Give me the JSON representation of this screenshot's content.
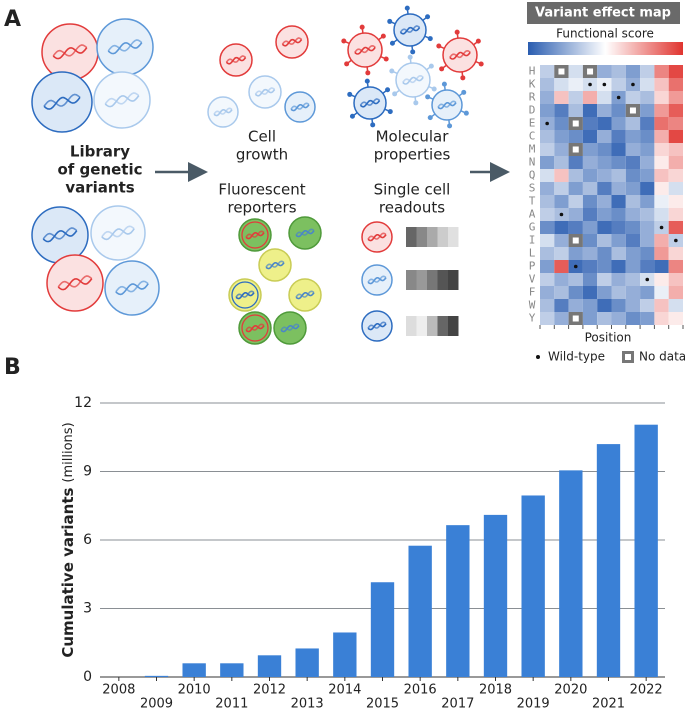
{
  "panel_a": {
    "label": "A",
    "library": [
      "Library",
      "of genetic",
      "variants"
    ],
    "cell_growth": [
      "Cell",
      "growth"
    ],
    "molecular": [
      "Molecular",
      "properties"
    ],
    "fluorescent": [
      "Fluorescent",
      "reporters"
    ],
    "single_cell": [
      "Single cell",
      "readouts"
    ],
    "heatmap": {
      "title": "Variant effect map",
      "scale_label": "Functional score",
      "clim": [
        -1,
        1
      ],
      "rows": [
        "H",
        "K",
        "R",
        "D",
        "E",
        "C",
        "M",
        "N",
        "Q",
        "S",
        "T",
        "A",
        "G",
        "I",
        "L",
        "P",
        "V",
        "F",
        "W",
        "Y"
      ],
      "values": [
        [
          -0.3,
          null,
          -0.2,
          null,
          -0.5,
          -0.4,
          -0.6,
          -0.3,
          0.6,
          0.9
        ],
        [
          -0.4,
          -0.2,
          -0.1,
          -0.2,
          -0.1,
          -0.3,
          -0.5,
          -0.2,
          0.3,
          0.7
        ],
        [
          -0.5,
          0.3,
          -0.3,
          0.4,
          -0.2,
          -0.6,
          -0.3,
          -0.4,
          0.2,
          0.5
        ],
        [
          -0.6,
          -0.8,
          -0.4,
          -0.9,
          -0.5,
          -0.7,
          null,
          -0.6,
          0.5,
          0.8
        ],
        [
          -0.5,
          -0.7,
          null,
          -0.8,
          -0.9,
          -0.6,
          -0.4,
          -0.8,
          0.7,
          0.6
        ],
        [
          -0.4,
          -0.6,
          -0.7,
          -0.9,
          -0.5,
          -0.8,
          -0.6,
          -0.7,
          0.4,
          0.9
        ],
        [
          -0.3,
          -0.5,
          null,
          -0.6,
          -0.7,
          -0.9,
          -0.5,
          -0.6,
          0.2,
          0.3
        ],
        [
          -0.6,
          -0.4,
          -0.8,
          -0.5,
          -0.6,
          -0.7,
          -0.8,
          -0.5,
          0.1,
          0.4
        ],
        [
          -0.2,
          0.3,
          -0.4,
          -0.6,
          -0.5,
          -0.4,
          -0.7,
          -0.6,
          0.3,
          0.2
        ],
        [
          -0.5,
          -0.3,
          -0.6,
          -0.4,
          -0.8,
          -0.5,
          -0.6,
          -0.9,
          0.1,
          -0.2
        ],
        [
          -0.4,
          -0.6,
          -0.3,
          -0.7,
          -0.5,
          -0.9,
          -0.4,
          -0.6,
          -0.1,
          0.1
        ],
        [
          -0.3,
          -0.4,
          -0.5,
          -0.8,
          -0.6,
          -0.7,
          -0.5,
          -0.4,
          -0.2,
          0.2
        ],
        [
          -0.7,
          -0.9,
          -0.8,
          -0.6,
          -0.9,
          -0.8,
          -0.7,
          -0.5,
          -0.3,
          0.8
        ],
        [
          -0.2,
          -0.5,
          null,
          -0.7,
          -0.4,
          -0.6,
          -0.8,
          -0.5,
          0.4,
          -0.3
        ],
        [
          -0.4,
          -0.3,
          -0.6,
          -0.5,
          -0.7,
          -0.4,
          -0.6,
          -0.7,
          0.5,
          0.2
        ],
        [
          -0.6,
          0.8,
          -0.9,
          -0.8,
          -0.7,
          -0.9,
          -0.6,
          -0.8,
          -0.9,
          0.6
        ],
        [
          -0.3,
          -0.5,
          -0.4,
          -0.7,
          -0.3,
          -0.5,
          -0.4,
          -0.2,
          0.1,
          0.3
        ],
        [
          -0.5,
          -0.4,
          -0.7,
          -0.9,
          -0.6,
          -0.4,
          -0.5,
          -0.6,
          -0.1,
          0.4
        ],
        [
          -0.4,
          -0.8,
          -0.5,
          -0.6,
          -0.9,
          -0.7,
          -0.5,
          -0.3,
          0.3,
          -0.2
        ],
        [
          -0.3,
          -0.5,
          null,
          -0.6,
          -0.4,
          -0.5,
          -0.7,
          -0.6,
          0.2,
          0.1
        ]
      ],
      "wild_type_rows": [
        4,
        11,
        15,
        1,
        1,
        2,
        1,
        16,
        12,
        13
      ],
      "xlabel": "Position",
      "legend": {
        "wild_type": "Wild-type",
        "no_data": "No data"
      }
    }
  },
  "panel_b_label": "B",
  "chart_data": {
    "type": "bar",
    "ylabel": "Cumulative variants",
    "ylabel_unit": "(millions)",
    "categories": [
      "2008",
      "2009",
      "2010",
      "2011",
      "2012",
      "2013",
      "2014",
      "2015",
      "2016",
      "2017",
      "2018",
      "2019",
      "2020",
      "2021",
      "2022"
    ],
    "values": [
      0,
      0.05,
      0.6,
      0.6,
      0.95,
      1.25,
      1.95,
      4.15,
      5.75,
      6.65,
      7.1,
      7.95,
      9.05,
      10.2,
      11.05
    ],
    "color": "#3a80d6",
    "ylim": [
      0,
      12
    ],
    "yticks": [
      0,
      3,
      6,
      9,
      12
    ],
    "grid": true
  }
}
